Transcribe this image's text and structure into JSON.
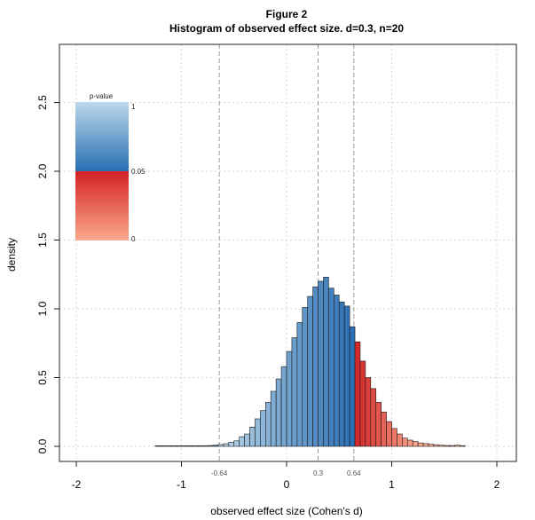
{
  "figure": {
    "title": "Figure 2"
  },
  "chart_data": {
    "type": "bar",
    "title": "Histogram of observed effect size. d=0.3, n=20",
    "xlabel": "observed effect size (Cohen's d)",
    "ylabel": "density",
    "xlim": [
      -2.2,
      2.2
    ],
    "ylim": [
      -0.1,
      2.9
    ],
    "x_ticks": [
      -2,
      -1,
      0,
      1,
      2
    ],
    "x_tick_labels": [
      "-2",
      "-1",
      "0",
      "1",
      "2"
    ],
    "y_ticks": [
      0,
      0.5,
      1,
      1.5,
      2,
      2.5
    ],
    "y_tick_labels": [
      "0.0",
      "0.5",
      "1.0",
      "1.5",
      "2.0",
      "2.5"
    ],
    "grid": true,
    "bin_width": 0.05,
    "bin_start": -1.25,
    "densities": [
      0.004,
      0.004,
      0.004,
      0.004,
      0.004,
      0.004,
      0.004,
      0.004,
      0.004,
      0.004,
      0.006,
      0.008,
      0.013,
      0.019,
      0.03,
      0.04,
      0.07,
      0.09,
      0.14,
      0.2,
      0.26,
      0.32,
      0.4,
      0.49,
      0.58,
      0.69,
      0.79,
      0.9,
      1.01,
      1.09,
      1.16,
      1.2,
      1.23,
      1.15,
      1.1,
      1.05,
      1.02,
      0.87,
      0.76,
      0.62,
      0.5,
      0.42,
      0.32,
      0.25,
      0.18,
      0.13,
      0.09,
      0.06,
      0.045,
      0.035,
      0.025,
      0.02,
      0.015,
      0.012,
      0.008,
      0.006,
      0.006,
      0.008,
      0.005
    ],
    "reference_lines": [
      {
        "x": -0.64,
        "label": "-0.64"
      },
      {
        "x": 0.3,
        "label": "0.3"
      },
      {
        "x": 0.64,
        "label": "0.64"
      }
    ],
    "color_scale": {
      "title": "p-value",
      "labels": [
        "1",
        "0.05",
        "0"
      ],
      "nonsignificant_colors": [
        "#bcd8ea",
        "#2a6eb3"
      ],
      "significant_colors": [
        "#d32125",
        "#fba98d"
      ]
    }
  }
}
